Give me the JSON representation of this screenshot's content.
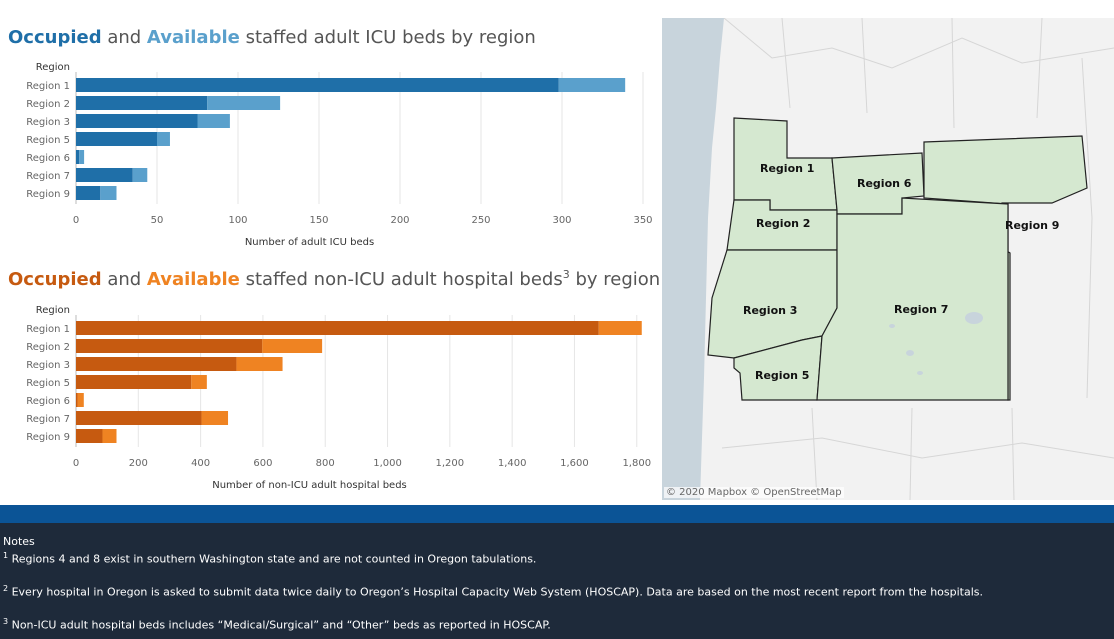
{
  "icu_title": {
    "word1": "Occupied",
    "word1_color": "#1f6fa8",
    "and": " and ",
    "word2": "Available",
    "word2_color": "#5aa0cc",
    "rest": " staffed adult ICU beds by region"
  },
  "nonicu_title": {
    "word1": "Occupied",
    "word1_color": "#c65a10",
    "and": " and ",
    "word2": "Available",
    "word2_color": "#ef8322",
    "rest": " staffed non-ICU adult hospital beds",
    "sup": "3",
    "rest2": " by region"
  },
  "chart_data": [
    {
      "type": "bar",
      "orientation": "horizontal",
      "stacked": true,
      "region_header": "Region",
      "categories": [
        "Region 1",
        "Region 2",
        "Region 3",
        "Region 5",
        "Region 6",
        "Region 7",
        "Region 9"
      ],
      "series": [
        {
          "name": "Occupied",
          "color": "#1f6fa8",
          "values": [
            298,
            81,
            75,
            50,
            2,
            35,
            15
          ]
        },
        {
          "name": "Available",
          "color": "#5aa0cc",
          "values": [
            41,
            45,
            20,
            8,
            3,
            9,
            10
          ]
        }
      ],
      "xlabel": "Number of adult ICU beds",
      "xticks": [
        0,
        50,
        100,
        150,
        200,
        250,
        300,
        350
      ],
      "xlim": [
        0,
        350
      ],
      "grid": true
    },
    {
      "type": "bar",
      "orientation": "horizontal",
      "stacked": true,
      "region_header": "Region",
      "categories": [
        "Region 1",
        "Region 2",
        "Region 3",
        "Region 5",
        "Region 6",
        "Region 7",
        "Region 9"
      ],
      "series": [
        {
          "name": "Occupied",
          "color": "#c65a10",
          "values": [
            1678,
            598,
            515,
            370,
            5,
            403,
            85
          ]
        },
        {
          "name": "Available",
          "color": "#ef8322",
          "values": [
            138,
            192,
            148,
            50,
            20,
            85,
            45
          ]
        }
      ],
      "xlabel": "Number of non-ICU adult hospital beds",
      "xticks": [
        0,
        200,
        400,
        600,
        800,
        1000,
        1200,
        1400,
        1600,
        1800
      ],
      "xtick_labels": [
        "0",
        "200",
        "400",
        "600",
        "800",
        "1,000",
        "1,200",
        "1,400",
        "1,600",
        "1,800"
      ],
      "xlim": [
        0,
        1820
      ],
      "grid": true
    }
  ],
  "map": {
    "region_labels": [
      "Region 1",
      "Region 2",
      "Region 3",
      "Region 5",
      "Region 6",
      "Region 7",
      "Region 9"
    ],
    "attribution": "© 2020 Mapbox © OpenStreetMap",
    "land_color": "#f2f2f2",
    "water_color": "#c8d4dc",
    "region_fill": "#d5e8d0",
    "region_stroke": "#222222"
  },
  "notes": {
    "heading": "Notes",
    "note1_sup": "1",
    "note1": " Regions 4 and 8 exist in southern Washington state and are not counted in Oregon tabulations.",
    "note2_sup": "2",
    "note2": " Every hospital in Oregon is asked to submit data twice daily to Oregon’s Hospital Capacity Web System (HOSCAP). Data are based on the most recent report from the hospitals.",
    "note3_sup": "3",
    "note3": " Non-ICU adult hospital beds includes “Medical/Surgical” and “Other” beds as reported in HOSCAP."
  }
}
